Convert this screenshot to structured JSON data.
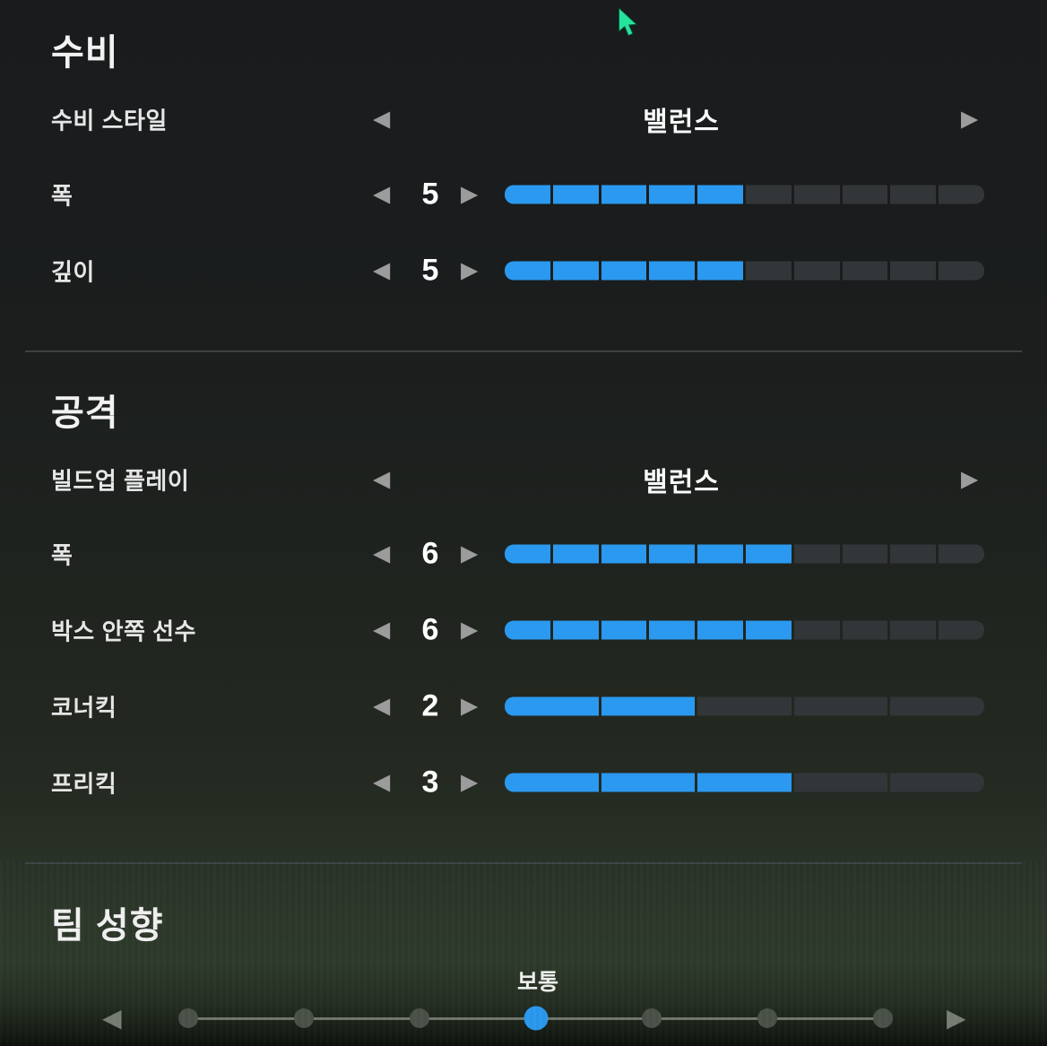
{
  "accent_color": "#2b99ef",
  "cursor_color": "#25e39b",
  "sections": [
    {
      "title": "수비",
      "rows": [
        {
          "type": "choice",
          "label": "수비 스타일",
          "value": "밸런스"
        },
        {
          "type": "stepper",
          "label": "폭",
          "value": "5",
          "num": 5,
          "max": 10
        },
        {
          "type": "stepper",
          "label": "깊이",
          "value": "5",
          "num": 5,
          "max": 10
        }
      ]
    },
    {
      "title": "공격",
      "rows": [
        {
          "type": "choice",
          "label": "빌드업 플레이",
          "value": "밸런스"
        },
        {
          "type": "stepper",
          "label": "폭",
          "value": "6",
          "num": 6,
          "max": 10
        },
        {
          "type": "stepper",
          "label": "박스 안쪽 선수",
          "value": "6",
          "num": 6,
          "max": 10
        },
        {
          "type": "stepper",
          "label": "코너킥",
          "value": "2",
          "num": 2,
          "max": 5
        },
        {
          "type": "stepper",
          "label": "프리킥",
          "value": "3",
          "num": 3,
          "max": 5
        }
      ]
    }
  ],
  "mentality": {
    "title": "팀 성향",
    "value": "보통",
    "dots": 7,
    "active_index": 3
  },
  "icons": {
    "left_arrow": "◀",
    "right_arrow": "▶"
  }
}
